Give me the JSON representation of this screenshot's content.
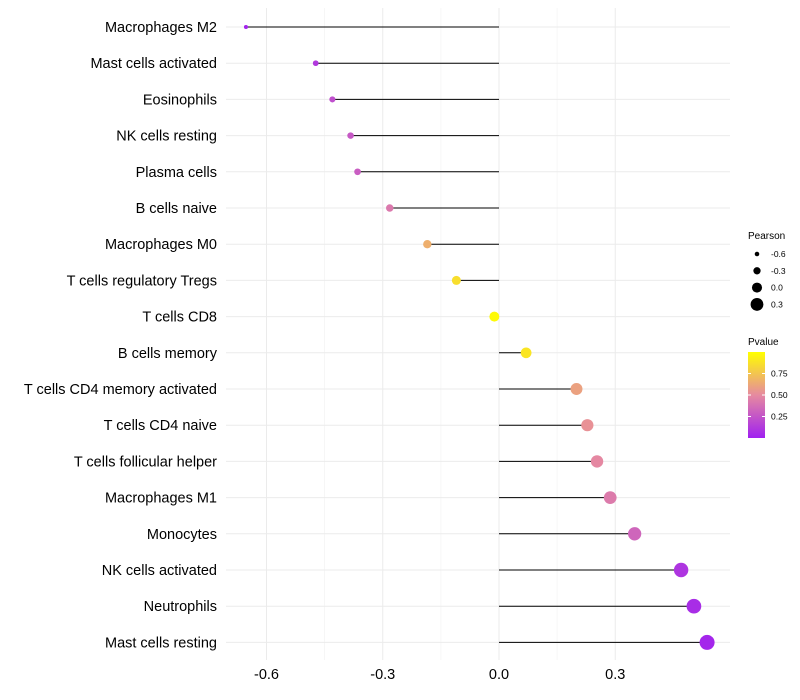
{
  "chart_data": {
    "type": "lollipop",
    "title": "",
    "xlabel": "",
    "ylabel": "",
    "xlim": [
      -0.66,
      0.56
    ],
    "x_ticks": [
      -0.6,
      -0.3,
      0.0,
      0.3
    ],
    "x_tick_labels": [
      "-0.6",
      "-0.3",
      "0.0",
      "0.3"
    ],
    "grid": true,
    "categories": [
      "Macrophages M2",
      "Mast cells activated",
      "Eosinophils",
      "NK cells resting",
      "Plasma cells",
      "B cells naive",
      "Macrophages M0",
      "T cells regulatory  Tregs ",
      "T cells CD8",
      "B cells memory",
      "T cells CD4 memory activated",
      "T cells CD4 naive",
      "T cells follicular helper",
      "Macrophages M1",
      "Monocytes",
      "NK cells activated",
      "Neutrophils",
      "Mast cells resting"
    ],
    "pearson": [
      -0.653,
      -0.473,
      -0.43,
      -0.383,
      -0.365,
      -0.282,
      -0.185,
      -0.11,
      -0.012,
      0.07,
      0.2,
      0.228,
      0.253,
      0.287,
      0.35,
      0.47,
      0.503,
      0.537
    ],
    "pvalue": [
      0.02,
      0.12,
      0.22,
      0.27,
      0.29,
      0.42,
      0.66,
      0.86,
      0.98,
      0.89,
      0.6,
      0.53,
      0.49,
      0.43,
      0.33,
      0.1,
      0.06,
      0.03
    ],
    "legend": {
      "size": {
        "title": "Pearson",
        "labels": [
          "-0.6",
          "-0.3",
          "0.0",
          "0.3"
        ],
        "values": [
          -0.6,
          -0.3,
          0.0,
          0.3
        ]
      },
      "color": {
        "title": "Pvalue",
        "labels": [
          "0.75",
          "0.50",
          "0.25"
        ],
        "values": [
          0.75,
          0.5,
          0.25
        ],
        "range": [
          0.0,
          1.0
        ],
        "low_color": "#a020f0",
        "mid_color": "#e68aa0",
        "high_color": "#ffff00"
      },
      "position": "right"
    }
  }
}
